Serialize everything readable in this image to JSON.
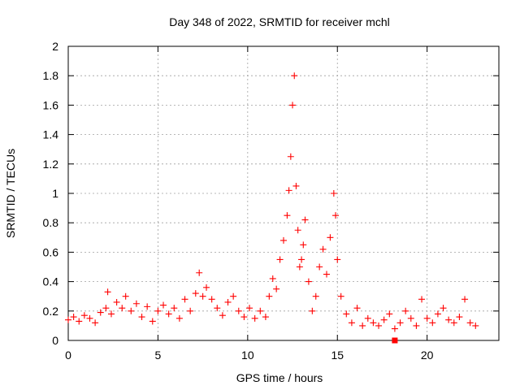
{
  "chart_data": {
    "type": "scatter",
    "title": "Day 348 of 2022, SRMTID for receiver mchl",
    "xlabel": "GPS time / hours",
    "ylabel": "SRMTID / TECUs",
    "xlim": [
      0,
      24
    ],
    "ylim": [
      0,
      2
    ],
    "xticks": [
      0,
      5,
      10,
      15,
      20
    ],
    "xtick_labels": [
      "0",
      "5",
      "10",
      "15",
      "20"
    ],
    "yticks": [
      0,
      0.2,
      0.4,
      0.6,
      0.8,
      1,
      1.2,
      1.4,
      1.6,
      1.8,
      2
    ],
    "ytick_labels": [
      "0",
      "0.2",
      "0.4",
      "0.6",
      "0.8",
      "1",
      "1.2",
      "1.4",
      "1.6",
      "1.8",
      "2"
    ],
    "grid": true,
    "marker": "+",
    "color": "#ff0000",
    "series": [
      {
        "name": "SRMTID",
        "x": [
          0.0,
          0.3,
          0.6,
          0.9,
          1.2,
          1.5,
          1.8,
          2.1,
          2.2,
          2.4,
          2.7,
          3.0,
          3.2,
          3.5,
          3.8,
          4.1,
          4.4,
          4.7,
          5.0,
          5.3,
          5.6,
          5.9,
          6.2,
          6.5,
          6.8,
          7.1,
          7.3,
          7.5,
          7.7,
          8.0,
          8.3,
          8.6,
          8.9,
          9.2,
          9.5,
          9.8,
          10.1,
          10.4,
          10.7,
          11.0,
          11.2,
          11.4,
          11.6,
          11.8,
          12.0,
          12.2,
          12.3,
          12.4,
          12.5,
          12.6,
          12.7,
          12.8,
          12.9,
          13.0,
          13.1,
          13.2,
          13.4,
          13.6,
          13.8,
          14.0,
          14.2,
          14.4,
          14.6,
          14.8,
          14.9,
          15.0,
          15.2,
          15.5,
          15.8,
          16.1,
          16.4,
          16.7,
          17.0,
          17.3,
          17.6,
          17.9,
          18.2,
          18.5,
          18.8,
          19.1,
          19.4,
          19.7,
          20.0,
          20.3,
          20.6,
          20.9,
          21.2,
          21.5,
          21.8,
          22.1,
          22.4,
          22.7
        ],
        "y": [
          0.14,
          0.16,
          0.13,
          0.17,
          0.15,
          0.12,
          0.19,
          0.22,
          0.33,
          0.18,
          0.26,
          0.22,
          0.3,
          0.2,
          0.25,
          0.16,
          0.23,
          0.13,
          0.2,
          0.24,
          0.18,
          0.22,
          0.15,
          0.28,
          0.2,
          0.32,
          0.46,
          0.3,
          0.36,
          0.28,
          0.22,
          0.17,
          0.26,
          0.3,
          0.2,
          0.16,
          0.22,
          0.15,
          0.2,
          0.16,
          0.3,
          0.42,
          0.35,
          0.55,
          0.68,
          0.85,
          1.02,
          1.25,
          1.6,
          1.8,
          1.05,
          0.75,
          0.5,
          0.55,
          0.65,
          0.82,
          0.4,
          0.2,
          0.3,
          0.5,
          0.62,
          0.45,
          0.7,
          1.0,
          0.85,
          0.55,
          0.3,
          0.18,
          0.12,
          0.22,
          0.1,
          0.15,
          0.12,
          0.1,
          0.14,
          0.18,
          0.08,
          0.12,
          0.2,
          0.15,
          0.1,
          0.28,
          0.15,
          0.12,
          0.18,
          0.22,
          0.14,
          0.12,
          0.16,
          0.28,
          0.12,
          0.1
        ]
      }
    ],
    "extra_marker": {
      "shape": "square",
      "x": 18.2,
      "y": 0.0
    }
  }
}
